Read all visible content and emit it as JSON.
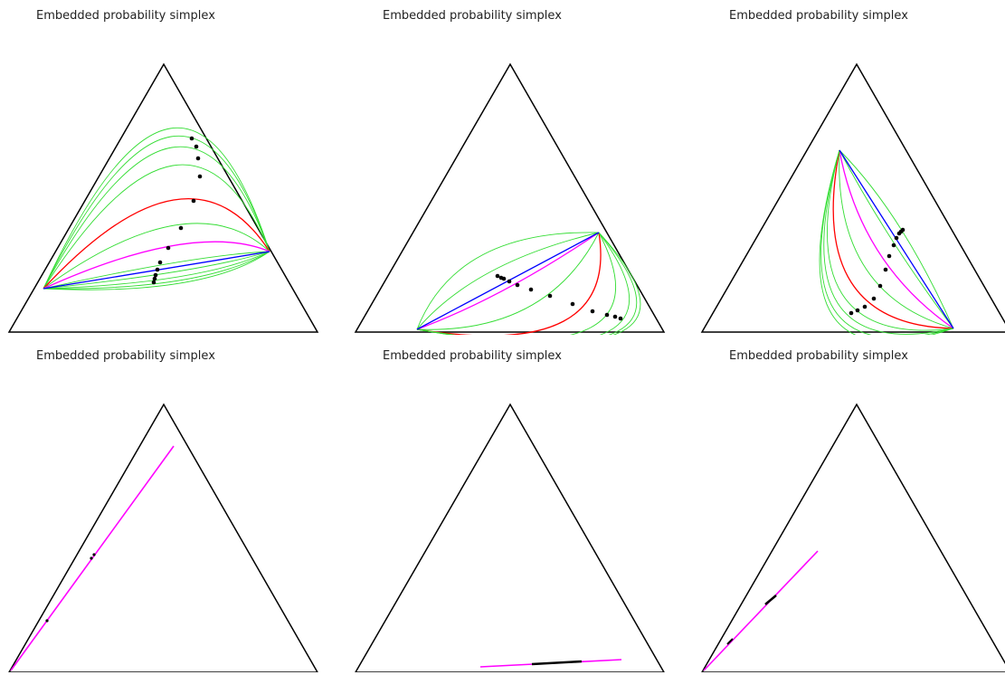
{
  "panels": [
    {
      "title": "Embedded probability simplex"
    },
    {
      "title": "Embedded probability simplex"
    },
    {
      "title": "Embedded probability simplex"
    },
    {
      "title": "Embedded probability simplex"
    },
    {
      "title": "Embedded probability simplex"
    },
    {
      "title": "Embedded probability simplex"
    }
  ],
  "colors": {
    "simplex_edge": "#000000",
    "red_curve": "#ff0000",
    "blue_curve": "#0000ff",
    "magenta_curve": "#ff00ff",
    "green_curves": "#33dd33",
    "points": "#000000"
  }
}
